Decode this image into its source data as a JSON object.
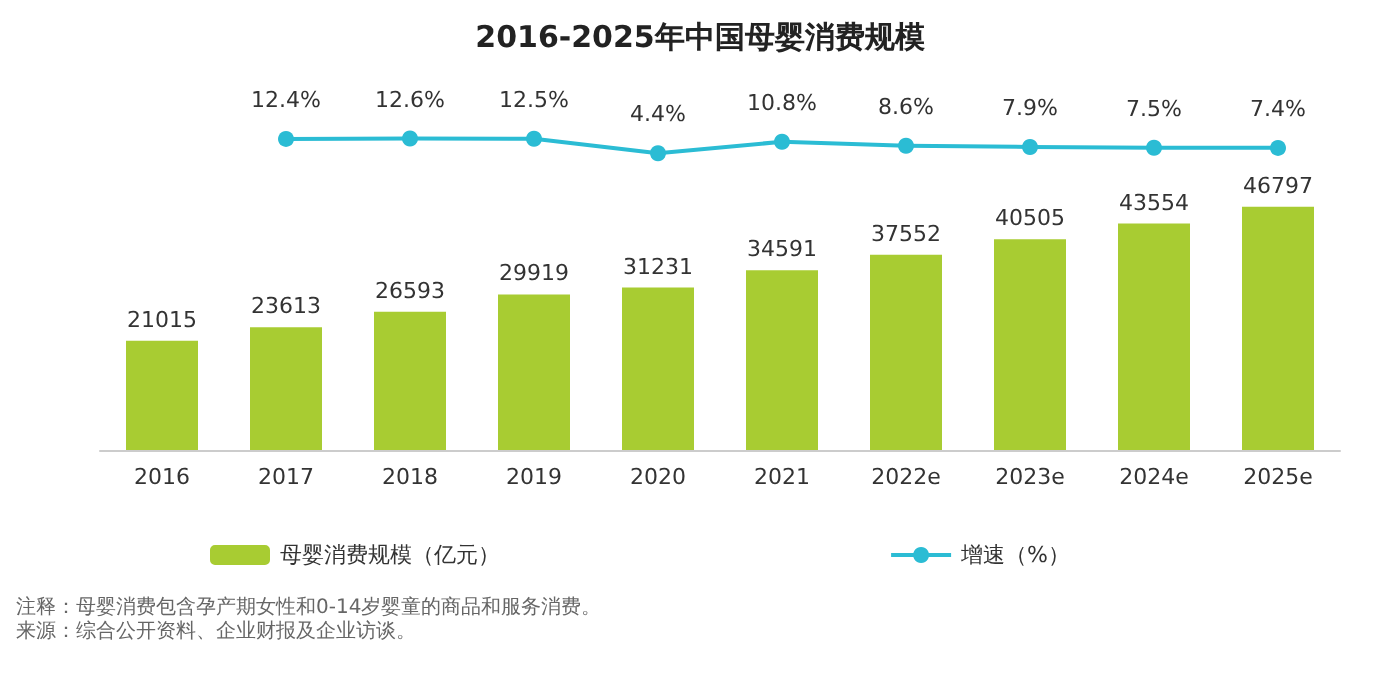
{
  "chart_data": [
    {
      "type": "line",
      "title": "2016-2025年中国母婴消费规模",
      "categories": [
        null,
        null,
        null,
        null,
        null,
        null,
        null,
        null,
        null,
        null
      ],
      "series": [
        {
          "name": "增速（%）",
          "color": "#2bbcd4",
          "values": [
            null,
            12.4,
            12.6,
            12.5,
            4.4,
            10.8,
            8.6,
            7.9,
            7.5,
            7.4
          ],
          "value_labels": [
            null,
            "12.4%",
            "12.6%",
            "12.5%",
            "4.4%",
            "10.8%",
            "8.6%",
            "7.9%",
            "7.5%",
            "7.4%"
          ]
        }
      ],
      "tick_labels": false,
      "legend": "bottom right",
      "marker": "circle",
      "line_style": "solid"
    },
    {
      "type": "bar",
      "categories": [
        "2016",
        "2017",
        "2018",
        "2019",
        "2020",
        "2021",
        "2022e",
        "2023e",
        "2024e",
        "2025e"
      ],
      "series": [
        {
          "name": "母婴消费规模（亿元）",
          "color": "#a8cc32",
          "values": [
            21015,
            23613,
            26593,
            29919,
            31231,
            34591,
            37552,
            40505,
            43554,
            46797
          ]
        }
      ],
      "data_labels": true,
      "tick_labels": "x",
      "legend": "bottom left",
      "annotations": [
        "注释：母婴消费包含孕产期女性和0-14岁婴童的商品和服务消费。",
        "来源：综合公开资料、企业财报及企业访谈。"
      ]
    }
  ]
}
